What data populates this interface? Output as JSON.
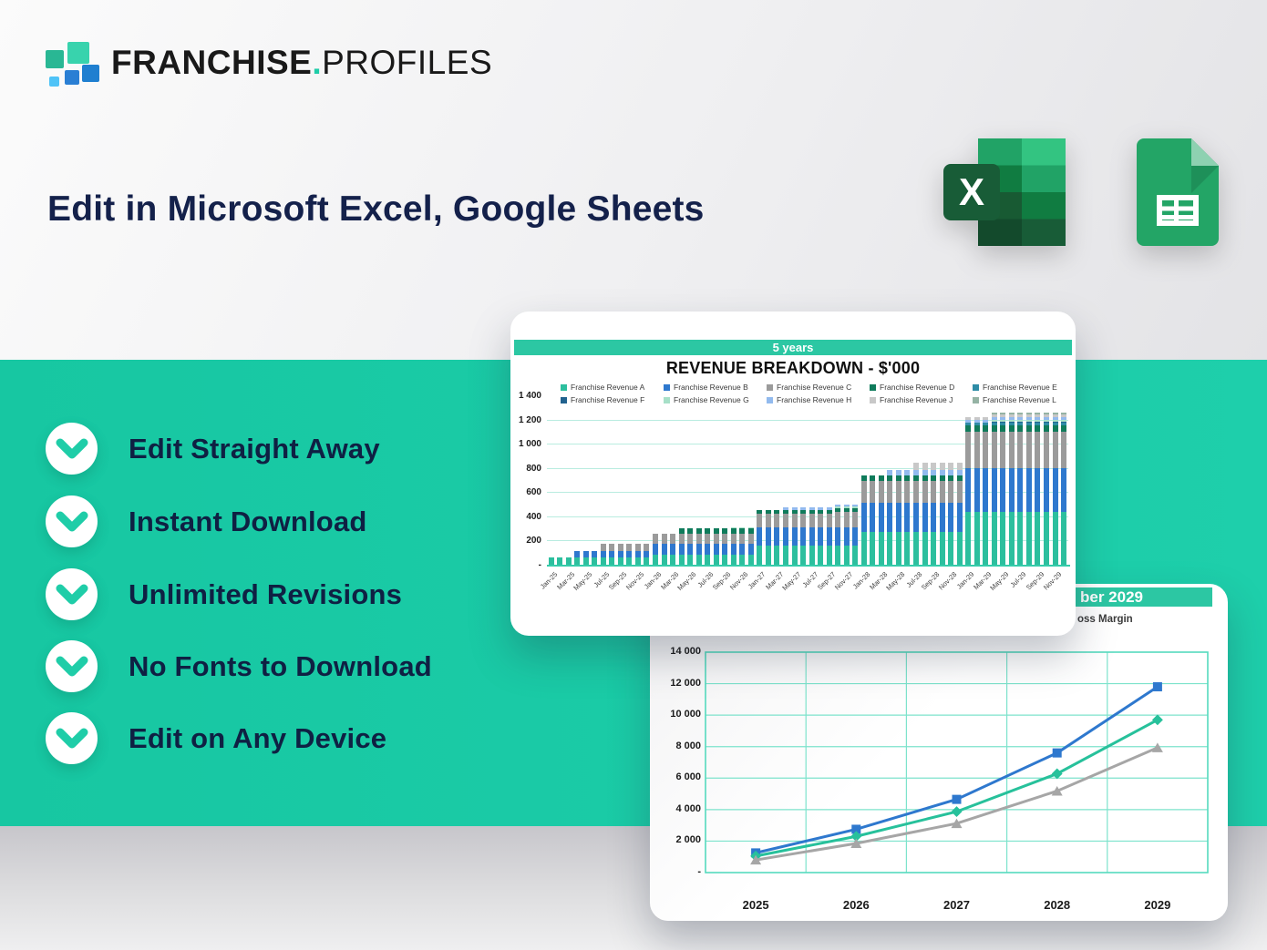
{
  "logo": {
    "bold": "FRANCHISE",
    "dot": ".",
    "light": "PROFILES"
  },
  "heading": "Edit in Microsoft Excel, Google Sheets",
  "icons": {
    "excel": "excel-icon",
    "sheets": "google-sheets-icon"
  },
  "colors": {
    "band_teal": "#1BCBA7",
    "navy_text": "#0F2043",
    "card_header_teal": "#2CC7A3",
    "grid_mint": "#7de3cc"
  },
  "checklist": [
    "Edit Straight Away",
    "Instant Download",
    "Unlimited Revisions",
    "No Fonts to Download",
    "Edit on Any Device"
  ],
  "chart_data": [
    {
      "type": "bar",
      "stacked": true,
      "header": "5 years",
      "title": "REVENUE BREAKDOWN - $'000",
      "ylim": [
        0,
        1400
      ],
      "y_tick_labels": [
        "1 400",
        "1 200",
        "1 000",
        "800",
        "600",
        "400",
        "200",
        "-"
      ],
      "y_tick_values": [
        1400,
        1200,
        1000,
        800,
        600,
        400,
        200,
        0
      ],
      "x_tick_labels": [
        "Jan-25",
        "Mar-25",
        "May-25",
        "Jul-25",
        "Sep-25",
        "Nov-25",
        "Jan-26",
        "Mar-26",
        "May-26",
        "Jul-26",
        "Sep-26",
        "Nov-26",
        "Jan-27",
        "Mar-27",
        "May-27",
        "Jul-27",
        "Sep-27",
        "Nov-27",
        "Jan-28",
        "Mar-28",
        "May-28",
        "Jul-28",
        "Sep-28",
        "Nov-28",
        "Jan-29",
        "Mar-29",
        "May-29",
        "Jul-29",
        "Sep-29",
        "Nov-29"
      ],
      "bars_per_tick": 2,
      "legend_position": "top",
      "grid": "horizontal",
      "series": [
        {
          "name": "Franchise Revenue A",
          "color": "#2CBF9E",
          "values": [
            60,
            60,
            60,
            60,
            60,
            60,
            60,
            60,
            60,
            60,
            60,
            60,
            85,
            85,
            85,
            85,
            85,
            85,
            85,
            85,
            85,
            85,
            85,
            85,
            155,
            155,
            155,
            155,
            155,
            155,
            155,
            155,
            155,
            155,
            155,
            155,
            270,
            270,
            270,
            270,
            270,
            270,
            270,
            270,
            270,
            270,
            270,
            270,
            440,
            440,
            440,
            440,
            440,
            440,
            440,
            440,
            440,
            440,
            440,
            440
          ]
        },
        {
          "name": "Franchise Revenue B",
          "color": "#2E78CE",
          "values": [
            0,
            0,
            0,
            55,
            55,
            55,
            55,
            55,
            55,
            55,
            55,
            55,
            88,
            88,
            88,
            88,
            88,
            88,
            88,
            88,
            88,
            88,
            88,
            88,
            155,
            155,
            155,
            155,
            155,
            155,
            155,
            155,
            155,
            155,
            155,
            155,
            240,
            240,
            240,
            240,
            240,
            240,
            240,
            240,
            240,
            240,
            240,
            240,
            360,
            360,
            360,
            360,
            360,
            360,
            360,
            360,
            360,
            360,
            360,
            360
          ]
        },
        {
          "name": "Franchise Revenue C",
          "color": "#9B9B9B",
          "values": [
            0,
            0,
            0,
            0,
            0,
            0,
            55,
            55,
            55,
            55,
            55,
            55,
            85,
            85,
            85,
            85,
            85,
            85,
            85,
            85,
            85,
            85,
            85,
            85,
            110,
            110,
            110,
            110,
            110,
            110,
            110,
            110,
            110,
            125,
            125,
            125,
            185,
            185,
            185,
            185,
            185,
            185,
            185,
            185,
            185,
            185,
            185,
            185,
            300,
            300,
            300,
            300,
            300,
            300,
            300,
            300,
            300,
            300,
            300,
            300
          ]
        },
        {
          "name": "Franchise Revenue D",
          "color": "#0F7B5B",
          "values": [
            0,
            0,
            0,
            0,
            0,
            0,
            0,
            0,
            0,
            0,
            0,
            0,
            0,
            0,
            0,
            42,
            42,
            42,
            42,
            42,
            42,
            42,
            42,
            42,
            35,
            35,
            35,
            35,
            35,
            35,
            35,
            35,
            35,
            35,
            35,
            35,
            40,
            40,
            40,
            40,
            40,
            40,
            40,
            40,
            40,
            40,
            40,
            40,
            52,
            52,
            52,
            52,
            52,
            52,
            52,
            52,
            52,
            52,
            52,
            52
          ]
        },
        {
          "name": "Franchise Revenue E",
          "color": "#2E8CA6",
          "values": [
            0,
            0,
            0,
            0,
            0,
            0,
            0,
            0,
            0,
            0,
            0,
            0,
            0,
            0,
            0,
            0,
            0,
            0,
            0,
            0,
            0,
            0,
            0,
            0,
            0,
            0,
            0,
            0,
            0,
            0,
            0,
            0,
            0,
            0,
            0,
            0,
            0,
            0,
            0,
            0,
            0,
            0,
            0,
            0,
            0,
            0,
            0,
            0,
            20,
            20,
            20,
            20,
            20,
            20,
            20,
            20,
            20,
            20,
            20,
            20
          ]
        },
        {
          "name": "Franchise Revenue F",
          "color": "#21628E",
          "values": [
            0,
            0,
            0,
            0,
            0,
            0,
            0,
            0,
            0,
            0,
            0,
            0,
            0,
            0,
            0,
            0,
            0,
            0,
            0,
            0,
            0,
            0,
            0,
            0,
            0,
            0,
            0,
            0,
            0,
            0,
            0,
            0,
            0,
            0,
            0,
            0,
            0,
            0,
            0,
            0,
            0,
            0,
            0,
            0,
            0,
            0,
            0,
            0,
            0,
            0,
            0,
            10,
            10,
            10,
            10,
            10,
            10,
            10,
            10,
            10
          ]
        },
        {
          "name": "Franchise Revenue G",
          "color": "#A7E0C8",
          "values": [
            0,
            0,
            0,
            0,
            0,
            0,
            0,
            0,
            0,
            0,
            0,
            0,
            0,
            0,
            0,
            0,
            0,
            0,
            0,
            0,
            0,
            10,
            10,
            10,
            0,
            0,
            0,
            0,
            0,
            0,
            0,
            0,
            0,
            14,
            14,
            14,
            0,
            0,
            0,
            0,
            0,
            0,
            0,
            0,
            0,
            0,
            0,
            0,
            0,
            0,
            0,
            12,
            12,
            12,
            12,
            12,
            12,
            12,
            12,
            12
          ]
        },
        {
          "name": "Franchise Revenue H",
          "color": "#92BAEE",
          "values": [
            0,
            0,
            0,
            0,
            0,
            0,
            0,
            0,
            0,
            0,
            0,
            0,
            0,
            0,
            0,
            0,
            0,
            0,
            0,
            0,
            0,
            0,
            0,
            0,
            0,
            0,
            0,
            16,
            16,
            16,
            16,
            16,
            16,
            16,
            16,
            16,
            0,
            0,
            0,
            50,
            50,
            50,
            50,
            50,
            50,
            50,
            50,
            50,
            25,
            25,
            25,
            25,
            25,
            25,
            25,
            25,
            25,
            25,
            25,
            25
          ]
        },
        {
          "name": "Franchise Revenue J",
          "color": "#C8C8C8",
          "values": [
            0,
            0,
            0,
            0,
            0,
            0,
            0,
            0,
            0,
            0,
            0,
            0,
            0,
            0,
            0,
            0,
            0,
            0,
            0,
            0,
            0,
            0,
            0,
            0,
            0,
            0,
            0,
            0,
            0,
            0,
            0,
            0,
            0,
            0,
            0,
            0,
            0,
            0,
            0,
            0,
            0,
            0,
            55,
            55,
            55,
            55,
            55,
            55,
            20,
            20,
            20,
            20,
            20,
            20,
            20,
            20,
            20,
            20,
            20,
            20
          ]
        },
        {
          "name": "Franchise Revenue L",
          "color": "#95B3A4",
          "values": [
            0,
            0,
            0,
            0,
            0,
            0,
            0,
            0,
            0,
            0,
            0,
            0,
            0,
            0,
            0,
            0,
            0,
            0,
            0,
            0,
            0,
            0,
            0,
            0,
            0,
            0,
            0,
            0,
            0,
            0,
            0,
            0,
            0,
            0,
            0,
            0,
            0,
            0,
            0,
            0,
            0,
            0,
            0,
            0,
            0,
            0,
            0,
            0,
            0,
            0,
            0,
            15,
            15,
            15,
            15,
            15,
            15,
            15,
            15,
            15
          ]
        }
      ]
    },
    {
      "type": "line",
      "header_visible_fragment": "ber 2029",
      "legend_visible_fragment": "oss Margin",
      "x_tick_labels": [
        "2025",
        "2026",
        "2027",
        "2028",
        "2029"
      ],
      "ylim": [
        0,
        14000
      ],
      "y_tick_labels": [
        "14 000",
        "12 000",
        "10 000",
        "8 000",
        "6 000",
        "4 000",
        "2 000",
        "-"
      ],
      "y_tick_values": [
        14000,
        12000,
        10000,
        8000,
        6000,
        4000,
        2000,
        0
      ],
      "grid": "both",
      "series": [
        {
          "name": "series-blue",
          "marker": "square",
          "color": "#2E78CE",
          "values": [
            1250,
            2750,
            4650,
            7600,
            11800
          ]
        },
        {
          "name": "series-teal",
          "marker": "diamond",
          "color": "#27C19B",
          "values": [
            1050,
            2300,
            3870,
            6280,
            9700
          ]
        },
        {
          "name": "series-gray",
          "marker": "triangle",
          "color": "#A6A6A6",
          "values": [
            800,
            1850,
            3120,
            5180,
            7930
          ]
        }
      ]
    }
  ]
}
